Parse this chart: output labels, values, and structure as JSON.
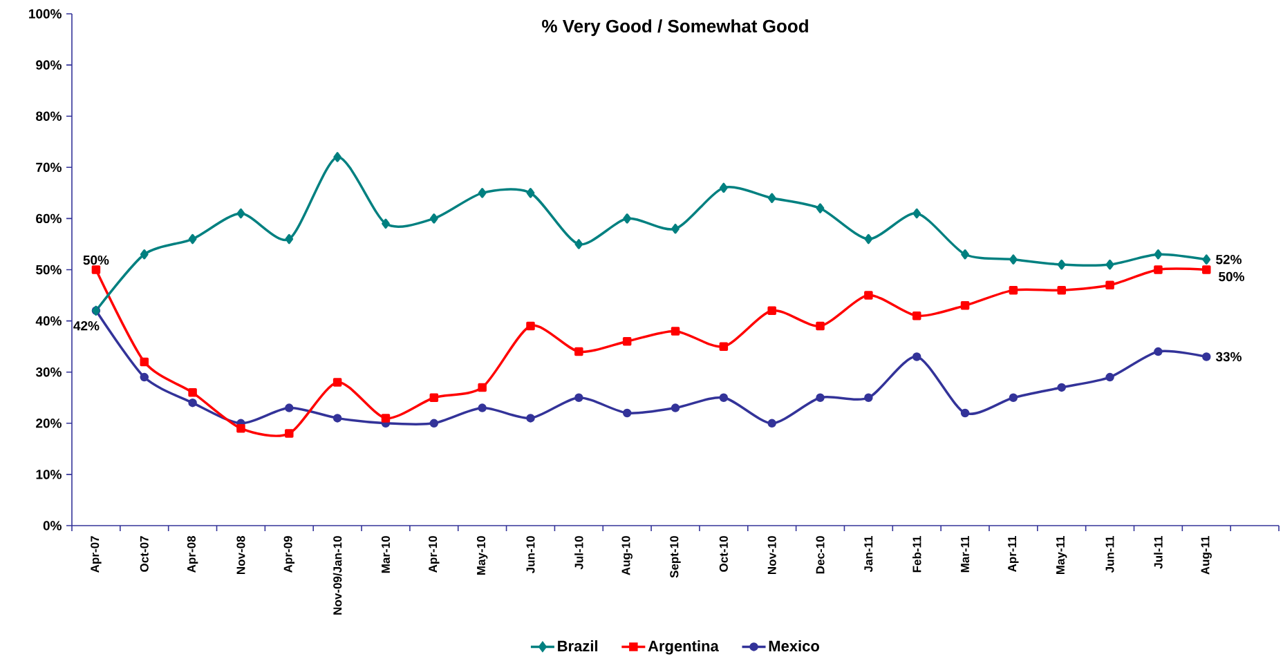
{
  "chart_data": {
    "type": "line",
    "title": "% Very Good / Somewhat Good",
    "categories": [
      "Apr-07",
      "Oct-07",
      "Apr-08",
      "Nov-08",
      "Apr-09",
      "Nov-09/Jan-10",
      "Mar-10",
      "Apr-10",
      "May-10",
      "Jun-10",
      "Jul-10",
      "Aug-10",
      "Sept-10",
      "Oct-10",
      "Nov-10",
      "Dec-10",
      "Jan-11",
      "Feb-11",
      "Mar-11",
      "Apr-11",
      "May-11",
      "Jun-11",
      "Jul-11",
      "Aug-11"
    ],
    "series": [
      {
        "name": "Brazil",
        "color": "#008080",
        "marker": "diamond",
        "values": [
          42,
          53,
          56,
          61,
          56,
          72,
          59,
          60,
          65,
          65,
          55,
          60,
          58,
          66,
          64,
          62,
          56,
          61,
          53,
          52,
          51,
          51,
          53,
          52
        ],
        "value_labels": [
          null,
          null,
          null,
          null,
          null,
          null,
          null,
          null,
          null,
          null,
          null,
          null,
          null,
          null,
          null,
          null,
          null,
          null,
          null,
          null,
          null,
          null,
          null,
          "52%"
        ]
      },
      {
        "name": "Argentina",
        "color": "#ff0000",
        "marker": "square",
        "values": [
          50,
          32,
          26,
          19,
          18,
          28,
          21,
          25,
          27,
          39,
          34,
          36,
          38,
          35,
          42,
          39,
          45,
          41,
          43,
          46,
          46,
          47,
          50,
          50
        ],
        "value_labels": [
          "50%",
          null,
          null,
          null,
          null,
          null,
          null,
          null,
          null,
          null,
          null,
          null,
          null,
          null,
          null,
          null,
          null,
          null,
          null,
          null,
          null,
          null,
          null,
          "50%"
        ]
      },
      {
        "name": "Mexico",
        "color": "#333399",
        "marker": "circle",
        "values": [
          42,
          29,
          24,
          20,
          23,
          21,
          20,
          20,
          23,
          21,
          25,
          22,
          23,
          25,
          20,
          25,
          25,
          33,
          22,
          25,
          27,
          29,
          34,
          33
        ],
        "value_labels": [
          "42%",
          null,
          null,
          null,
          null,
          null,
          null,
          null,
          null,
          null,
          null,
          null,
          null,
          null,
          null,
          null,
          null,
          null,
          null,
          null,
          null,
          null,
          null,
          "33%"
        ]
      }
    ],
    "ylim": [
      0,
      100
    ],
    "yticks": [
      {
        "value": 0,
        "label": "0%"
      },
      {
        "value": 10,
        "label": "10%"
      },
      {
        "value": 20,
        "label": "20%"
      },
      {
        "value": 30,
        "label": "30%"
      },
      {
        "value": 40,
        "label": "40%"
      },
      {
        "value": 50,
        "label": "50%"
      },
      {
        "value": 60,
        "label": "60%"
      },
      {
        "value": 70,
        "label": "70%"
      },
      {
        "value": 80,
        "label": "80%"
      },
      {
        "value": 90,
        "label": "90%"
      },
      {
        "value": 100,
        "label": "100%"
      }
    ],
    "grid": false,
    "legend": "bottom",
    "line_style": "solid"
  }
}
